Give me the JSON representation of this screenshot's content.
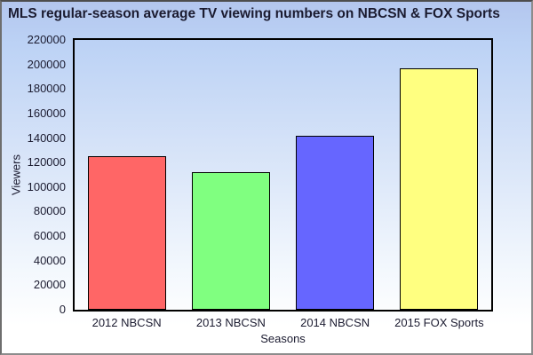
{
  "chart_data": {
    "type": "bar",
    "title": "MLS regular-season average TV viewing numbers on NBCSN & FOX Sports",
    "categories": [
      "2012 NBCSN",
      "2013 NBCSN",
      "2014 NBCSN",
      "2015 FOX Sports"
    ],
    "values": [
      125000,
      112000,
      142000,
      197000
    ],
    "bar_colors": [
      "#ff6666",
      "#80ff80",
      "#6666ff",
      "#ffff80"
    ],
    "bar_border_color": "#000000",
    "xlabel": "Seasons",
    "ylabel": "Viewers",
    "ylim": [
      0,
      220000
    ],
    "yticks": [
      0,
      20000,
      40000,
      60000,
      80000,
      100000,
      120000,
      140000,
      160000,
      180000,
      200000,
      220000
    ],
    "ytick_labels": [
      "0",
      "20000",
      "40000",
      "60000",
      "80000",
      "100000",
      "120000",
      "140000",
      "160000",
      "180000",
      "200000",
      "220000"
    ],
    "grid": false,
    "legend": null,
    "background_gradient": {
      "top": "#b3c6ee",
      "bottom": "#ffffff"
    }
  }
}
